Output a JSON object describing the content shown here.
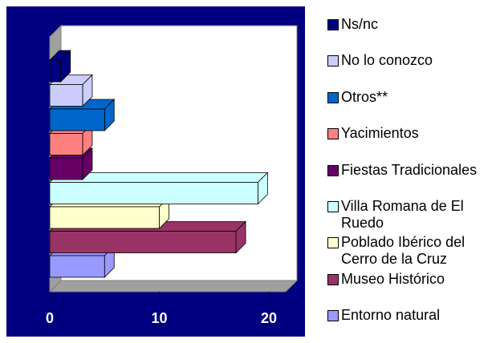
{
  "chart_data": {
    "type": "bar3d_horizontal",
    "categories": [
      "Entorno natural",
      "Museo Histórico",
      "Poblado Ibérico del Cerro de la Cruz",
      "Villa Romana de El Ruedo",
      "Fiestas Tradicionales",
      "Yacimientos",
      "Otros**",
      "No lo conozco",
      "Ns/nc"
    ],
    "values": [
      5,
      17,
      10,
      19,
      3,
      3,
      5,
      3,
      1
    ],
    "colors": [
      "#9999ff",
      "#993366",
      "#ffffcc",
      "#ccffff",
      "#660066",
      "#ff8080",
      "#0066cc",
      "#ccccff",
      "#000080"
    ],
    "xlim": [
      0,
      20
    ],
    "xticks": [
      0,
      10,
      20
    ],
    "legend": "right"
  }
}
